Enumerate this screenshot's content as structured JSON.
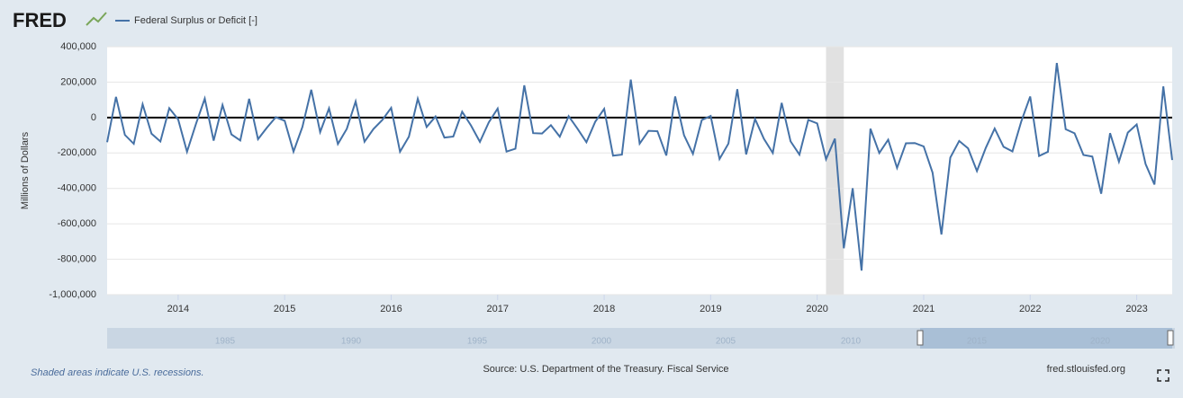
{
  "chart_data": {
    "type": "line",
    "logo": "FRED",
    "ylabel": "Millions of Dollars",
    "footnote": "Shaded areas indicate U.S. recessions.",
    "source": "Source: U.S. Department of the Treasury. Fiscal Service",
    "site": "fred.stlouisfed.org",
    "x": [
      "2013-05",
      "2013-06",
      "2013-07",
      "2013-08",
      "2013-09",
      "2013-10",
      "2013-11",
      "2013-12",
      "2014-01",
      "2014-02",
      "2014-03",
      "2014-04",
      "2014-05",
      "2014-06",
      "2014-07",
      "2014-08",
      "2014-09",
      "2014-10",
      "2014-11",
      "2014-12",
      "2015-01",
      "2015-02",
      "2015-03",
      "2015-04",
      "2015-05",
      "2015-06",
      "2015-07",
      "2015-08",
      "2015-09",
      "2015-10",
      "2015-11",
      "2015-12",
      "2016-01",
      "2016-02",
      "2016-03",
      "2016-04",
      "2016-05",
      "2016-06",
      "2016-07",
      "2016-08",
      "2016-09",
      "2016-10",
      "2016-11",
      "2016-12",
      "2017-01",
      "2017-02",
      "2017-03",
      "2017-04",
      "2017-05",
      "2017-06",
      "2017-07",
      "2017-08",
      "2017-09",
      "2017-10",
      "2017-11",
      "2017-12",
      "2018-01",
      "2018-02",
      "2018-03",
      "2018-04",
      "2018-05",
      "2018-06",
      "2018-07",
      "2018-08",
      "2018-09",
      "2018-10",
      "2018-11",
      "2018-12",
      "2019-01",
      "2019-02",
      "2019-03",
      "2019-04",
      "2019-05",
      "2019-06",
      "2019-07",
      "2019-08",
      "2019-09",
      "2019-10",
      "2019-11",
      "2019-12",
      "2020-01",
      "2020-02",
      "2020-03",
      "2020-04",
      "2020-05",
      "2020-06",
      "2020-07",
      "2020-08",
      "2020-09",
      "2020-10",
      "2020-11",
      "2020-12",
      "2021-01",
      "2021-02",
      "2021-03",
      "2021-04",
      "2021-05",
      "2021-06",
      "2021-07",
      "2021-08",
      "2021-09",
      "2021-10",
      "2021-11",
      "2021-12",
      "2022-01",
      "2022-02",
      "2022-03",
      "2022-04",
      "2022-05",
      "2022-06",
      "2022-07",
      "2022-08",
      "2022-09",
      "2022-10",
      "2022-11",
      "2022-12",
      "2023-01",
      "2023-02",
      "2023-03",
      "2023-04",
      "2023-05"
    ],
    "series": [
      {
        "name": "Federal Surplus or Deficit [-]",
        "color": "#4572a7",
        "values": [
          -139000,
          117000,
          -98000,
          -148000,
          75000,
          -91000,
          -135000,
          53000,
          -10000,
          -193000,
          -37000,
          107000,
          -130000,
          71000,
          -95000,
          -129000,
          106000,
          -122000,
          -57000,
          2000,
          -18000,
          -192000,
          -53000,
          157000,
          -82000,
          52000,
          -149000,
          -64000,
          91000,
          -136000,
          -65000,
          -14000,
          55000,
          -193000,
          -108000,
          106000,
          -53000,
          6000,
          -113000,
          -107000,
          33000,
          -45000,
          -137000,
          -27000,
          51000,
          -192000,
          -176000,
          182000,
          -88000,
          -90000,
          -43000,
          -108000,
          8000,
          -63000,
          -139000,
          -23000,
          49000,
          -215000,
          -209000,
          214000,
          -147000,
          -75000,
          -77000,
          -214000,
          119000,
          -100000,
          -205000,
          -14000,
          9000,
          -234000,
          -147000,
          160000,
          -208000,
          -8000,
          -120000,
          -200000,
          83000,
          -134000,
          -209000,
          -13000,
          -33000,
          -235000,
          -119000,
          -738000,
          -399000,
          -864000,
          -63000,
          -200000,
          -125000,
          -284000,
          -145000,
          -144000,
          -163000,
          -311000,
          -660000,
          -226000,
          -132000,
          -174000,
          -302000,
          -171000,
          -62000,
          -165000,
          -191000,
          -21000,
          119000,
          -217000,
          -193000,
          308000,
          -66000,
          -89000,
          -211000,
          -220000,
          -430000,
          -88000,
          -249000,
          -85000,
          -39000,
          -262000,
          -378000,
          176000,
          -240000
        ]
      }
    ],
    "xlim": [
      "2013-05",
      "2023-05"
    ],
    "xticks": [
      2014,
      2015,
      2016,
      2017,
      2018,
      2019,
      2020,
      2021,
      2022,
      2023
    ],
    "ylim": [
      -1000000,
      400000
    ],
    "yticks": [
      {
        "value": -1000000,
        "label": "-1,000,000"
      },
      {
        "value": -800000,
        "label": "-800,000"
      },
      {
        "value": -600000,
        "label": "-600,000"
      },
      {
        "value": -400000,
        "label": "-400,000"
      },
      {
        "value": -200000,
        "label": "-200,000"
      },
      0,
      {
        "value": 200000,
        "label": "200,000"
      },
      {
        "value": 400000,
        "label": "400,000"
      }
    ],
    "grid": true,
    "recessions": [
      [
        "2020-02",
        "2020-04"
      ]
    ],
    "recession_color": "#e1e1e1",
    "navigator_labels": [
      "1985",
      "1990",
      "1995",
      "2000",
      "2005",
      "2010",
      "2015",
      "2020"
    ]
  }
}
